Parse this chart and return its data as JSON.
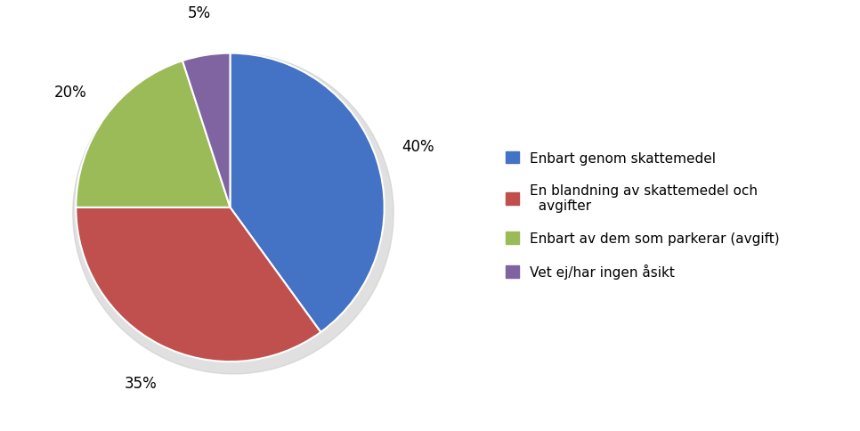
{
  "slices": [
    40,
    35,
    20,
    5
  ],
  "labels": [
    "40%",
    "35%",
    "20%",
    "5%"
  ],
  "colors": [
    "#4472C4",
    "#C0504D",
    "#9BBB59",
    "#8064A2"
  ],
  "legend_labels": [
    "Enbart genom skattemedel",
    "En blandning av skattemedel och\n  avgifter",
    "Enbart av dem som parkerar (avgift)",
    "Vet ej/har ingen åsikt"
  ],
  "startangle": 90,
  "background_color": "#FFFFFF",
  "label_fontsize": 12,
  "legend_fontsize": 11
}
